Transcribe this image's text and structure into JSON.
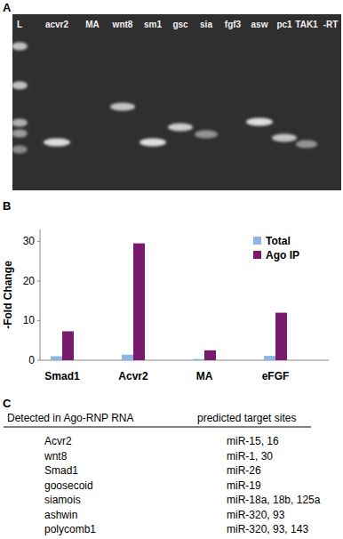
{
  "panel_a": {
    "label": "A",
    "lanes": [
      "L",
      "acvr2",
      "MA",
      "wnt8",
      "sm1",
      "gsc",
      "sia",
      "fgf3",
      "asw",
      "pc1",
      "TAK1",
      "-RT"
    ]
  },
  "panel_b": {
    "label": "B"
  },
  "chart_data": {
    "type": "bar",
    "categories": [
      "Smad1",
      "Acvr2",
      "MA",
      "eFGF"
    ],
    "series": [
      {
        "name": "Total",
        "color": "#8db4e2",
        "values": [
          1.0,
          1.4,
          0.3,
          1.1
        ]
      },
      {
        "name": "Ago IP",
        "color": "#7a1a6e",
        "values": [
          7.3,
          29.5,
          2.5,
          12.0
        ]
      }
    ],
    "y_label": "-Fold Change",
    "ylim": [
      0,
      33
    ],
    "yticks": [
      0,
      10,
      20,
      30
    ],
    "grid": false,
    "legend": "top-right"
  },
  "panel_c": {
    "label": "C",
    "header": [
      "Detected in Ago-RNP RNA",
      "predicted target sites"
    ],
    "rows": [
      [
        "Acvr2",
        "miR-15, 16"
      ],
      [
        "wnt8",
        "miR-1, 30"
      ],
      [
        "Smad1",
        "miR-26"
      ],
      [
        "goosecoid",
        "miR-19"
      ],
      [
        "siamois",
        "miR-18a, 18b, 125a"
      ],
      [
        "ashwin",
        "miR-320, 93"
      ],
      [
        "polycomb1",
        "miR-320, 93, 143"
      ]
    ]
  }
}
